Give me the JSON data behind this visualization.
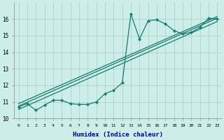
{
  "xlabel": "Humidex (Indice chaleur)",
  "background_color": "#cceee8",
  "grid_color": "#b0d0cc",
  "line_color": "#1a7a6e",
  "xlim": [
    -0.5,
    23.5
  ],
  "ylim": [
    10,
    17
  ],
  "yticks": [
    10,
    11,
    12,
    13,
    14,
    15,
    16
  ],
  "xticks": [
    0,
    1,
    2,
    3,
    4,
    5,
    6,
    7,
    8,
    9,
    10,
    11,
    12,
    13,
    14,
    15,
    16,
    17,
    18,
    19,
    20,
    21,
    22,
    23
  ],
  "data_x": [
    0,
    1,
    2,
    3,
    4,
    5,
    6,
    7,
    8,
    9,
    10,
    11,
    12,
    13,
    14,
    15,
    16,
    17,
    18,
    19,
    20,
    21,
    22,
    23
  ],
  "data_y": [
    10.7,
    10.9,
    10.5,
    10.8,
    11.1,
    11.1,
    10.9,
    10.85,
    10.85,
    11.0,
    11.5,
    11.7,
    12.15,
    16.3,
    14.8,
    15.9,
    15.95,
    15.7,
    15.3,
    15.1,
    15.2,
    15.5,
    16.05,
    16.0
  ],
  "trend1_x": [
    0,
    23
  ],
  "trend1_y": [
    10.55,
    15.85
  ],
  "trend2_x": [
    0,
    23
  ],
  "trend2_y": [
    10.75,
    16.05
  ],
  "trend3_x": [
    0,
    23
  ],
  "trend3_y": [
    10.9,
    16.15
  ],
  "xlabel_color": "#00008b",
  "xlabel_fontsize": 6.5
}
